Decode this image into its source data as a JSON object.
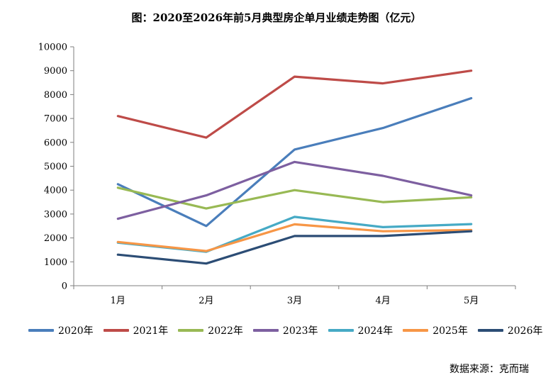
{
  "title": "图：2020至2026年前5月典型房企单月业绩走势图（亿元）",
  "source": "数据来源：克而瑞",
  "chart_data": {
    "type": "line",
    "categories": [
      "1月",
      "2月",
      "3月",
      "4月",
      "5月"
    ],
    "ylim": [
      0,
      10000
    ],
    "yticks": [
      0,
      1000,
      2000,
      3000,
      4000,
      5000,
      6000,
      7000,
      8000,
      9000,
      10000
    ],
    "grid": false,
    "legend_position": "bottom",
    "series": [
      {
        "name": "2020年",
        "color": "#4a7ebb",
        "values": [
          4250,
          2500,
          5700,
          6600,
          7850
        ]
      },
      {
        "name": "2021年",
        "color": "#be4b48",
        "values": [
          7100,
          6200,
          8750,
          8470,
          9000
        ]
      },
      {
        "name": "2022年",
        "color": "#98b954",
        "values": [
          4100,
          3230,
          4000,
          3500,
          3700
        ]
      },
      {
        "name": "2023年",
        "color": "#7d5fa0",
        "values": [
          2800,
          3780,
          5180,
          4600,
          3780
        ]
      },
      {
        "name": "2024年",
        "color": "#46aac5",
        "values": [
          1800,
          1420,
          2880,
          2450,
          2580
        ]
      },
      {
        "name": "2025年",
        "color": "#f79646",
        "values": [
          1830,
          1450,
          2570,
          2280,
          2330
        ]
      },
      {
        "name": "2026年",
        "color": "#2c4d75",
        "values": [
          1300,
          930,
          2080,
          2080,
          2280
        ]
      }
    ]
  }
}
